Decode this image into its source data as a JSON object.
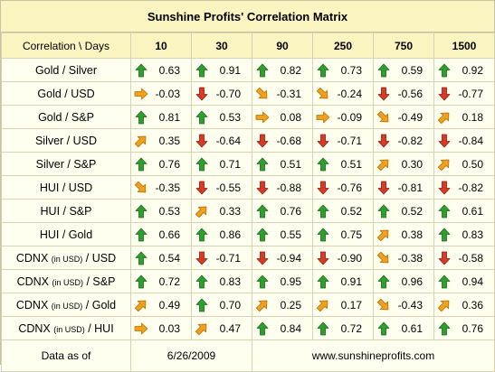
{
  "title": "Sunshine Profits' Correlation Matrix",
  "header": {
    "label": "Correlation \\ Days",
    "columns": [
      "10",
      "30",
      "90",
      "250",
      "750",
      "1500"
    ]
  },
  "rows": [
    {
      "pre": "Gold / Silver",
      "small": "",
      "post": "",
      "cells": [
        {
          "v": "0.63",
          "a": "up"
        },
        {
          "v": "0.91",
          "a": "up"
        },
        {
          "v": "0.82",
          "a": "up"
        },
        {
          "v": "0.73",
          "a": "up"
        },
        {
          "v": "0.59",
          "a": "up"
        },
        {
          "v": "0.92",
          "a": "up"
        }
      ]
    },
    {
      "pre": "Gold / USD",
      "small": "",
      "post": "",
      "cells": [
        {
          "v": "-0.03",
          "a": "right"
        },
        {
          "v": "-0.70",
          "a": "down"
        },
        {
          "v": "-0.31",
          "a": "downright"
        },
        {
          "v": "-0.24",
          "a": "downright"
        },
        {
          "v": "-0.56",
          "a": "down"
        },
        {
          "v": "-0.77",
          "a": "down"
        }
      ]
    },
    {
      "pre": "Gold / S&P",
      "small": "",
      "post": "",
      "cells": [
        {
          "v": "0.81",
          "a": "up"
        },
        {
          "v": "0.53",
          "a": "up"
        },
        {
          "v": "0.08",
          "a": "right"
        },
        {
          "v": "-0.09",
          "a": "right"
        },
        {
          "v": "-0.49",
          "a": "downright"
        },
        {
          "v": "0.18",
          "a": "upright"
        }
      ]
    },
    {
      "pre": "Silver / USD",
      "small": "",
      "post": "",
      "cells": [
        {
          "v": "0.35",
          "a": "upright"
        },
        {
          "v": "-0.64",
          "a": "down"
        },
        {
          "v": "-0.68",
          "a": "down"
        },
        {
          "v": "-0.71",
          "a": "down"
        },
        {
          "v": "-0.82",
          "a": "down"
        },
        {
          "v": "-0.84",
          "a": "down"
        }
      ]
    },
    {
      "pre": "Silver / S&P",
      "small": "",
      "post": "",
      "cells": [
        {
          "v": "0.76",
          "a": "up"
        },
        {
          "v": "0.71",
          "a": "up"
        },
        {
          "v": "0.51",
          "a": "up"
        },
        {
          "v": "0.51",
          "a": "up"
        },
        {
          "v": "0.30",
          "a": "upright"
        },
        {
          "v": "0.50",
          "a": "upright"
        }
      ]
    },
    {
      "pre": "HUI / USD",
      "small": "",
      "post": "",
      "cells": [
        {
          "v": "-0.35",
          "a": "downright"
        },
        {
          "v": "-0.55",
          "a": "down"
        },
        {
          "v": "-0.88",
          "a": "down"
        },
        {
          "v": "-0.76",
          "a": "down"
        },
        {
          "v": "-0.81",
          "a": "down"
        },
        {
          "v": "-0.82",
          "a": "down"
        }
      ]
    },
    {
      "pre": "HUI / S&P",
      "small": "",
      "post": "",
      "cells": [
        {
          "v": "0.53",
          "a": "up"
        },
        {
          "v": "0.33",
          "a": "upright"
        },
        {
          "v": "0.76",
          "a": "up"
        },
        {
          "v": "0.52",
          "a": "up"
        },
        {
          "v": "0.52",
          "a": "up"
        },
        {
          "v": "0.61",
          "a": "up"
        }
      ]
    },
    {
      "pre": "HUI / Gold",
      "small": "",
      "post": "",
      "cells": [
        {
          "v": "0.66",
          "a": "up"
        },
        {
          "v": "0.86",
          "a": "up"
        },
        {
          "v": "0.55",
          "a": "up"
        },
        {
          "v": "0.75",
          "a": "up"
        },
        {
          "v": "0.38",
          "a": "upright"
        },
        {
          "v": "0.83",
          "a": "up"
        }
      ]
    },
    {
      "pre": "CDNX ",
      "small": "(in USD)",
      "post": " / USD",
      "cells": [
        {
          "v": "0.54",
          "a": "up"
        },
        {
          "v": "-0.71",
          "a": "down"
        },
        {
          "v": "-0.94",
          "a": "down"
        },
        {
          "v": "-0.90",
          "a": "down"
        },
        {
          "v": "-0.38",
          "a": "downright"
        },
        {
          "v": "-0.58",
          "a": "down"
        }
      ]
    },
    {
      "pre": "CDNX ",
      "small": "(in USD)",
      "post": " / S&P",
      "cells": [
        {
          "v": "0.72",
          "a": "up"
        },
        {
          "v": "0.83",
          "a": "up"
        },
        {
          "v": "0.95",
          "a": "up"
        },
        {
          "v": "0.91",
          "a": "up"
        },
        {
          "v": "0.96",
          "a": "up"
        },
        {
          "v": "0.94",
          "a": "up"
        }
      ]
    },
    {
      "pre": "CDNX ",
      "small": "(in USD)",
      "post": " / Gold",
      "cells": [
        {
          "v": "0.49",
          "a": "upright"
        },
        {
          "v": "0.70",
          "a": "up"
        },
        {
          "v": "0.25",
          "a": "upright"
        },
        {
          "v": "0.17",
          "a": "upright"
        },
        {
          "v": "-0.43",
          "a": "downright"
        },
        {
          "v": "0.36",
          "a": "upright"
        }
      ]
    },
    {
      "pre": "CDNX ",
      "small": "(in USD)",
      "post": " / HUI",
      "cells": [
        {
          "v": "0.03",
          "a": "right"
        },
        {
          "v": "0.47",
          "a": "upright"
        },
        {
          "v": "0.84",
          "a": "up"
        },
        {
          "v": "0.72",
          "a": "up"
        },
        {
          "v": "0.61",
          "a": "up"
        },
        {
          "v": "0.76",
          "a": "up"
        }
      ]
    }
  ],
  "footer": {
    "label": "Data as of",
    "date": "6/26/2009",
    "url": "www.sunshineprofits.com"
  },
  "icon_names": {
    "up": "green-up-arrow-icon",
    "down": "red-down-arrow-icon",
    "right": "orange-right-arrow-icon",
    "upright": "orange-up-right-arrow-icon",
    "downright": "orange-down-right-arrow-icon"
  },
  "colors": {
    "header_bg": "#faf4c0",
    "cell_bg": "#fffff0",
    "border": "#d7d2b4",
    "up": "#2e9e2e",
    "down": "#d93a26",
    "neutral": "#f0a020"
  }
}
